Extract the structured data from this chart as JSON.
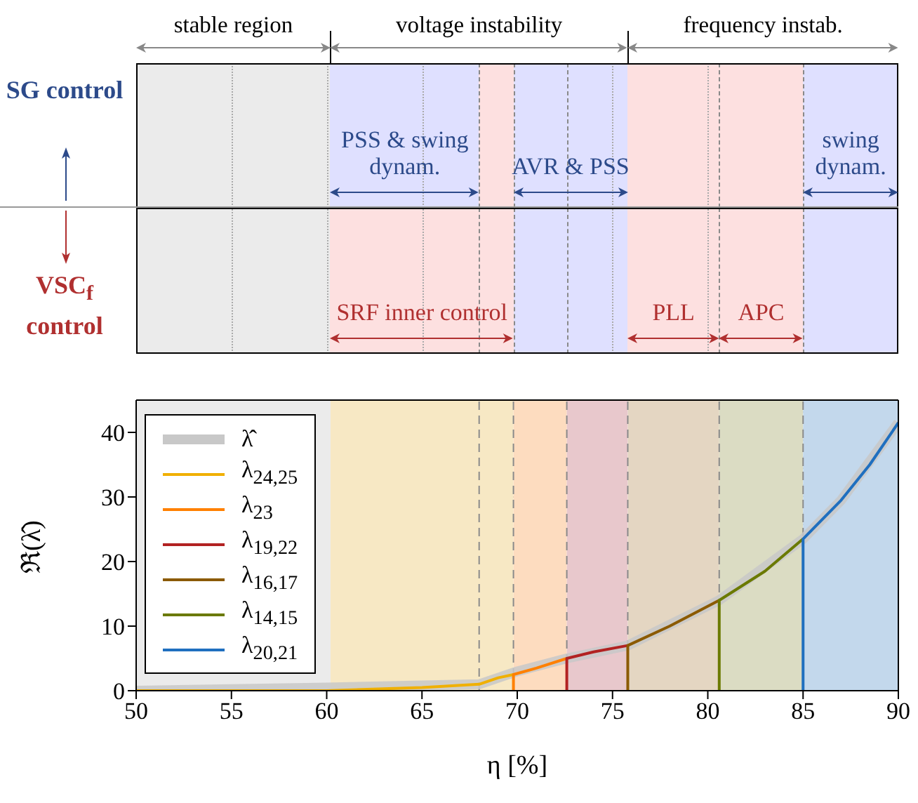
{
  "chart_data": [
    {
      "type": "other",
      "annotations": [
        "stable region",
        "voltage instability",
        "frequency instab."
      ]
    },
    {
      "type": "other",
      "ylabel": "SG control",
      "annotations": [
        "PSS & swing dynam.",
        "AVR & PSS",
        "swing dynam."
      ]
    },
    {
      "type": "other",
      "ylabel": "VSC$_{f}$ control",
      "annotations": [
        "SRF inner control",
        "PLL",
        "APC"
      ]
    },
    {
      "type": "line",
      "xlabel": "η [%]",
      "ylabel": "ℜ(λ̂)",
      "xlim": [
        50,
        90
      ],
      "xticks": [
        50,
        55,
        60,
        65,
        70,
        75,
        80,
        85,
        90
      ],
      "ylim": [
        0,
        45
      ],
      "yticks": [
        0,
        10,
        20,
        30,
        40
      ],
      "grid": true,
      "legend": "left",
      "series": [
        {
          "name": "λ̂",
          "color": "#c8c8c8",
          "x": [
            50,
            60,
            68,
            69,
            70,
            72.6,
            75.8,
            80.6,
            85,
            87,
            90
          ],
          "values": [
            0,
            0.5,
            1,
            2,
            3,
            5,
            7,
            14,
            23.5,
            29.5,
            41.5
          ]
        },
        {
          "name": "λ$_{24,25}$",
          "color": "#f0b000",
          "x": [
            50,
            60,
            65,
            68,
            69,
            69.8
          ],
          "values": [
            0,
            0,
            0.5,
            1,
            2,
            2.5
          ]
        },
        {
          "name": "λ$_{23}$",
          "color": "#ff8000",
          "x": [
            69.8,
            69.8,
            71,
            72.6
          ],
          "values": [
            0,
            2.5,
            3.5,
            5
          ]
        },
        {
          "name": "λ$_{19,22}$",
          "color": "#b22222",
          "x": [
            72.6,
            72.6,
            74,
            75.8
          ],
          "values": [
            0,
            5,
            6,
            7
          ]
        },
        {
          "name": "λ$_{16,17}$",
          "color": "#8b5a00",
          "x": [
            75.8,
            75.8,
            78,
            80.6
          ],
          "values": [
            0,
            7,
            10,
            14
          ]
        },
        {
          "name": "λ$_{14,15}$",
          "color": "#6b7a00",
          "x": [
            80.6,
            80.6,
            83,
            85
          ],
          "values": [
            0,
            14,
            18.5,
            23.5
          ]
        },
        {
          "name": "λ$_{20,21}$",
          "color": "#1f6fbf",
          "x": [
            85,
            85,
            87,
            88.5,
            90
          ],
          "values": [
            0,
            23.5,
            29.5,
            35,
            41.5
          ]
        }
      ],
      "bands": [
        {
          "axis": "x",
          "from": 50,
          "to": 60.2,
          "color": "#ebebeb"
        },
        {
          "axis": "x",
          "from": 60.2,
          "to": 69.8,
          "color": "#f7e8c4"
        },
        {
          "axis": "x",
          "from": 69.8,
          "to": 72.6,
          "color": "#fddcbf"
        },
        {
          "axis": "x",
          "from": 72.6,
          "to": 75.8,
          "color": "#e8c8cc"
        },
        {
          "axis": "x",
          "from": 75.8,
          "to": 80.6,
          "color": "#e4d6c2"
        },
        {
          "axis": "x",
          "from": 80.6,
          "to": 85,
          "color": "#dbdcc3"
        },
        {
          "axis": "x",
          "from": 85,
          "to": 90,
          "color": "#c3d8ec"
        }
      ],
      "ref_lines": [
        {
          "axis": "x",
          "value": 68,
          "line_style": "dashed"
        },
        {
          "axis": "x",
          "value": 69.8,
          "line_style": "dashed"
        },
        {
          "axis": "x",
          "value": 72.6,
          "line_style": "dashed"
        },
        {
          "axis": "x",
          "value": 75.8,
          "line_style": "dashed"
        },
        {
          "axis": "x",
          "value": 80.6,
          "line_style": "dashed"
        },
        {
          "axis": "x",
          "value": 85,
          "line_style": "dashed"
        }
      ]
    }
  ]
}
